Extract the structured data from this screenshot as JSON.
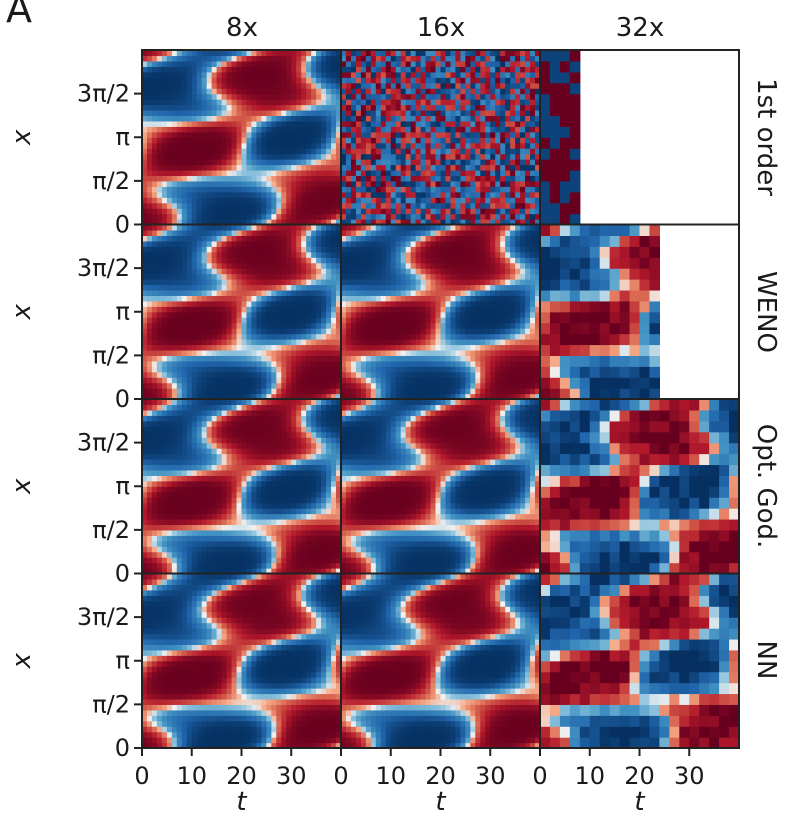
{
  "panel_letter": "A",
  "chart_data": {
    "type": "heatmap",
    "colormap": "RdBu",
    "columns": [
      "8x",
      "16x",
      "32x"
    ],
    "rows": [
      "1st order",
      "WENO",
      "Opt. God.",
      "NN"
    ],
    "xlabel": "t",
    "ylabel": "x",
    "x_ticks": [
      "0",
      "10",
      "20",
      "30"
    ],
    "y_ticks": [
      "0",
      "π/2",
      "π",
      "3π/2"
    ],
    "xlim": [
      0,
      40
    ],
    "ylim": [
      0,
      6.283
    ],
    "stable_until_t": [
      [
        40,
        40,
        8
      ],
      [
        40,
        40,
        24
      ],
      [
        40,
        40,
        40
      ],
      [
        40,
        40,
        40
      ]
    ],
    "colors": {
      "red": "#b2182b",
      "white": "#f7f7f7",
      "blue": "#2166ac"
    }
  }
}
